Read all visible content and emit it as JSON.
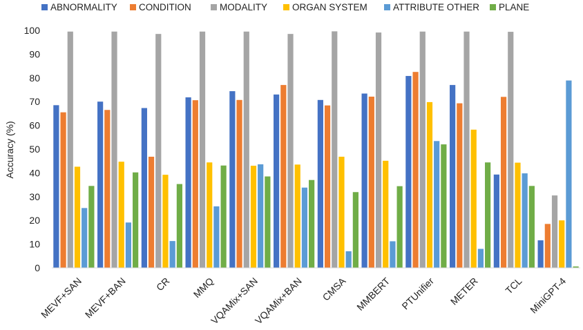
{
  "chart_data": {
    "type": "bar",
    "ylabel": "Accuracy (%)",
    "xlabel": "",
    "ylim": [
      0,
      100
    ],
    "yticks": [
      0,
      10,
      20,
      30,
      40,
      50,
      60,
      70,
      80,
      90,
      100
    ],
    "grid": false,
    "legend_position": "top",
    "categories": [
      "MEVF+SAN",
      "MEVF+BAN",
      "CR",
      "MMQ",
      "VQAMix+SAN",
      "VQAMix+BAN",
      "CMSA",
      "MMBERT",
      "PTUnifier",
      "METER",
      "TCL",
      "MiniGPT-4"
    ],
    "series": [
      {
        "name": "ABNORMALITY",
        "color": "#4472C4",
        "values": [
          68.5,
          70.0,
          67.3,
          71.8,
          74.4,
          73.0,
          70.7,
          73.4,
          80.8,
          77.0,
          39.3,
          11.6
        ]
      },
      {
        "name": "CONDITION",
        "color": "#ED7D31",
        "values": [
          65.5,
          66.5,
          46.8,
          70.6,
          70.7,
          77.0,
          68.4,
          72.1,
          82.5,
          69.3,
          72.0,
          18.5
        ]
      },
      {
        "name": "MODALITY",
        "color": "#A5A5A5",
        "values": [
          99.5,
          99.5,
          98.5,
          99.5,
          99.5,
          98.5,
          99.6,
          99.1,
          99.5,
          99.5,
          99.4,
          30.5
        ]
      },
      {
        "name": "ORGAN SYSTEM",
        "color": "#FFC000",
        "values": [
          42.6,
          44.7,
          39.2,
          44.4,
          43.0,
          43.5,
          46.8,
          45.1,
          69.8,
          58.2,
          44.3,
          20.0
        ]
      },
      {
        "name": "ATTRIBUTE OTHER",
        "color": "#5B9BD5",
        "values": [
          25.2,
          19.1,
          11.3,
          25.9,
          43.6,
          33.8,
          7.0,
          11.2,
          53.4,
          8.0,
          39.8,
          78.9
        ]
      },
      {
        "name": "PLANE",
        "color": "#70AD47",
        "values": [
          34.5,
          40.2,
          35.3,
          43.1,
          38.5,
          37.0,
          31.9,
          34.4,
          52.0,
          44.4,
          34.5,
          0.6
        ]
      }
    ]
  }
}
